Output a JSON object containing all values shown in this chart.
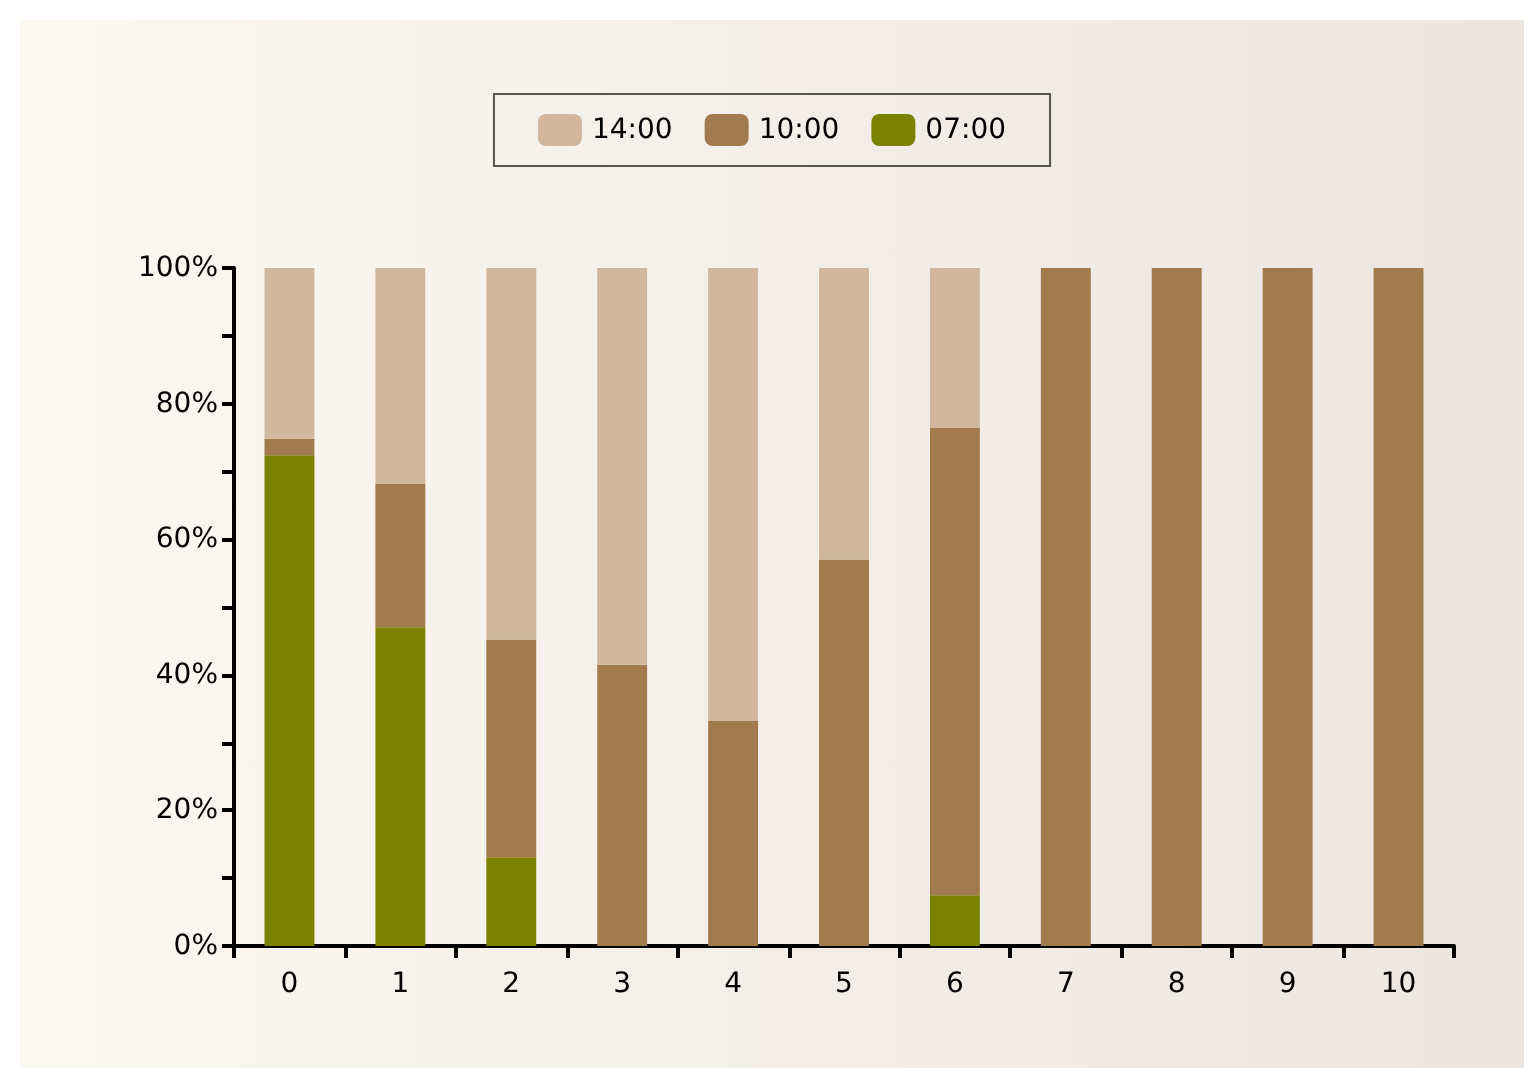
{
  "chart_data": {
    "type": "bar",
    "stacked": true,
    "categories": [
      "0",
      "1",
      "2",
      "3",
      "4",
      "5",
      "6",
      "7",
      "8",
      "9",
      "10"
    ],
    "series": [
      {
        "name": "07:00",
        "color": "#7a8200",
        "values": [
          72.4,
          47.0,
          13.1,
          0,
          0,
          0,
          7.5,
          0,
          0,
          0,
          0
        ]
      },
      {
        "name": "10:00",
        "color": "#a17a4d",
        "values": [
          2.4,
          21.2,
          32.1,
          41.5,
          33.2,
          57.0,
          68.9,
          100,
          100,
          100,
          100
        ]
      },
      {
        "name": "14:00",
        "color": "#d0b79e",
        "values": [
          25.2,
          31.8,
          54.8,
          58.5,
          66.8,
          43.0,
          23.6,
          0,
          0,
          0,
          0
        ]
      }
    ],
    "ylim": [
      0,
      100
    ],
    "yticks": [
      {
        "value": 0,
        "label": "0%"
      },
      {
        "value": 10,
        "label": null
      },
      {
        "value": 20,
        "label": "20%"
      },
      {
        "value": 30,
        "label": null
      },
      {
        "value": 40,
        "label": "40%"
      },
      {
        "value": 50,
        "label": null
      },
      {
        "value": 60,
        "label": "60%"
      },
      {
        "value": 70,
        "label": null
      },
      {
        "value": 80,
        "label": "80%"
      },
      {
        "value": 90,
        "label": null
      },
      {
        "value": 100,
        "label": "100%"
      }
    ],
    "grid": false,
    "legend": "top"
  }
}
